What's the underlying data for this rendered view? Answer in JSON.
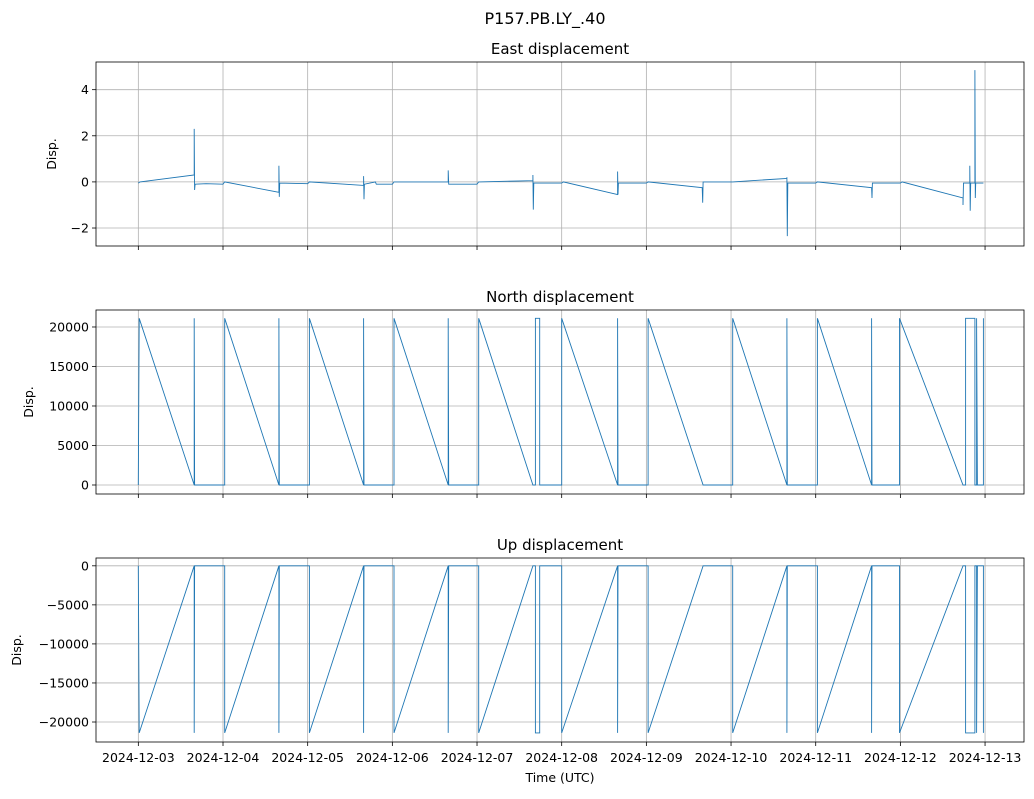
{
  "chart_data": {
    "type": "line",
    "suptitle": "P157.PB.LY_.40",
    "xlabel": "Time (UTC)",
    "x_unit": "days since 2024-12-03",
    "x_ticks": [
      "2024-12-03",
      "2024-12-04",
      "2024-12-05",
      "2024-12-06",
      "2024-12-07",
      "2024-12-08",
      "2024-12-09",
      "2024-12-10",
      "2024-12-11",
      "2024-12-12",
      "2024-12-13"
    ],
    "xlim": [
      -0.5,
      10.46
    ],
    "grid": true,
    "color": "#1f77b4",
    "panels": [
      {
        "title": "East displacement",
        "ylabel": "Disp.",
        "ylim": [
          -2.78,
          5.2
        ],
        "yticks": [
          -2,
          0,
          2,
          4
        ],
        "ytick_labels": [
          "−2",
          "0",
          "2",
          "4"
        ],
        "points": [
          [
            0,
            -0.05
          ],
          [
            0.02,
            0
          ],
          [
            0.66,
            0.3
          ],
          [
            0.66,
            2.3
          ],
          [
            0.665,
            -0.35
          ],
          [
            0.67,
            -0.1
          ],
          [
            0.8,
            -0.08
          ],
          [
            1.0,
            -0.1
          ],
          [
            1.02,
            0
          ],
          [
            1.66,
            -0.45
          ],
          [
            1.66,
            0.7
          ],
          [
            1.665,
            -0.65
          ],
          [
            1.67,
            -0.05
          ],
          [
            2.0,
            -0.08
          ],
          [
            2.02,
            0
          ],
          [
            2.66,
            -0.15
          ],
          [
            2.66,
            0.25
          ],
          [
            2.665,
            -0.75
          ],
          [
            2.67,
            -0.1
          ],
          [
            2.8,
            0.0
          ],
          [
            2.81,
            -0.1
          ],
          [
            3.0,
            -0.1
          ],
          [
            3.02,
            0
          ],
          [
            3.66,
            0.0
          ],
          [
            3.66,
            0.5
          ],
          [
            3.665,
            -0.1
          ],
          [
            4.0,
            -0.1
          ],
          [
            4.02,
            0
          ],
          [
            4.66,
            0.05
          ],
          [
            4.66,
            0.3
          ],
          [
            4.665,
            -1.2
          ],
          [
            4.67,
            -0.05
          ],
          [
            5.0,
            -0.05
          ],
          [
            5.02,
            0
          ],
          [
            5.66,
            -0.55
          ],
          [
            5.66,
            0.45
          ],
          [
            5.665,
            -0.55
          ],
          [
            5.67,
            -0.05
          ],
          [
            6.0,
            -0.05
          ],
          [
            6.02,
            0
          ],
          [
            6.66,
            -0.25
          ],
          [
            6.665,
            -0.9
          ],
          [
            6.67,
            0
          ],
          [
            7.0,
            0.0
          ],
          [
            7.02,
            0
          ],
          [
            7.66,
            0.15
          ],
          [
            7.66,
            0.2
          ],
          [
            7.665,
            -2.35
          ],
          [
            7.67,
            -0.05
          ],
          [
            8.0,
            -0.05
          ],
          [
            8.02,
            0
          ],
          [
            8.66,
            -0.25
          ],
          [
            8.665,
            -0.7
          ],
          [
            8.67,
            -0.05
          ],
          [
            9.0,
            -0.05
          ],
          [
            9.02,
            0
          ],
          [
            9.74,
            -0.7
          ],
          [
            9.74,
            -1.0
          ],
          [
            9.745,
            -0.05
          ],
          [
            9.82,
            -0.05
          ],
          [
            9.82,
            0.7
          ],
          [
            9.825,
            -1.25
          ],
          [
            9.83,
            -0.05
          ],
          [
            9.88,
            -0.05
          ],
          [
            9.88,
            4.85
          ],
          [
            9.885,
            -0.7
          ],
          [
            9.89,
            -0.05
          ],
          [
            9.98,
            -0.05
          ]
        ]
      },
      {
        "title": "North displacement",
        "ylabel": "Disp.",
        "ylim": [
          -1140,
          22150
        ],
        "yticks": [
          0,
          5000,
          10000,
          15000,
          20000
        ],
        "ytick_labels": [
          "0",
          "5000",
          "10000",
          "15000",
          "20000"
        ],
        "points": [
          [
            0,
            0
          ],
          [
            0.01,
            21100
          ],
          [
            0.66,
            0
          ],
          [
            0.66,
            21100
          ],
          [
            0.665,
            0
          ],
          [
            1.02,
            0
          ],
          [
            1.02,
            21100
          ],
          [
            1.66,
            0
          ],
          [
            1.66,
            21100
          ],
          [
            1.665,
            0
          ],
          [
            2.02,
            0
          ],
          [
            2.02,
            21100
          ],
          [
            2.66,
            0
          ],
          [
            2.66,
            21100
          ],
          [
            2.665,
            0
          ],
          [
            3.02,
            0
          ],
          [
            3.02,
            21100
          ],
          [
            3.66,
            0
          ],
          [
            3.66,
            21100
          ],
          [
            3.665,
            0
          ],
          [
            4.02,
            0
          ],
          [
            4.02,
            21100
          ],
          [
            4.66,
            0
          ],
          [
            4.69,
            0
          ],
          [
            4.69,
            21100
          ],
          [
            4.74,
            21100
          ],
          [
            4.74,
            0
          ],
          [
            5.0,
            0
          ],
          [
            5.0,
            21100
          ],
          [
            5.66,
            0
          ],
          [
            5.66,
            21100
          ],
          [
            5.665,
            0
          ],
          [
            6.02,
            0
          ],
          [
            6.02,
            21100
          ],
          [
            6.67,
            0
          ],
          [
            7.02,
            0
          ],
          [
            7.02,
            21100
          ],
          [
            7.66,
            0
          ],
          [
            7.66,
            21100
          ],
          [
            7.665,
            0
          ],
          [
            8.02,
            0
          ],
          [
            8.02,
            21100
          ],
          [
            8.66,
            0
          ],
          [
            8.66,
            21100
          ],
          [
            8.665,
            0
          ],
          [
            8.99,
            0
          ],
          [
            8.99,
            21100
          ],
          [
            9.74,
            0
          ],
          [
            9.77,
            0
          ],
          [
            9.77,
            21100
          ],
          [
            9.88,
            21100
          ],
          [
            9.88,
            0
          ],
          [
            9.9,
            0
          ],
          [
            9.9,
            21100
          ],
          [
            9.91,
            0
          ],
          [
            9.98,
            0
          ],
          [
            9.98,
            21100
          ]
        ]
      },
      {
        "title": "Up displacement",
        "ylabel": "Disp.",
        "ylim": [
          -22560,
          1000
        ],
        "yticks": [
          -20000,
          -15000,
          -10000,
          -5000,
          0
        ],
        "ytick_labels": [
          "−20000",
          "−15000",
          "−10000",
          "−5000",
          "0"
        ],
        "points": [
          [
            0,
            0
          ],
          [
            0.01,
            -21400
          ],
          [
            0.66,
            0
          ],
          [
            0.66,
            -21400
          ],
          [
            0.665,
            0
          ],
          [
            1.02,
            0
          ],
          [
            1.02,
            -21400
          ],
          [
            1.66,
            0
          ],
          [
            1.66,
            -21400
          ],
          [
            1.665,
            0
          ],
          [
            2.02,
            0
          ],
          [
            2.02,
            -21400
          ],
          [
            2.66,
            0
          ],
          [
            2.66,
            -21400
          ],
          [
            2.665,
            0
          ],
          [
            3.02,
            0
          ],
          [
            3.02,
            -21400
          ],
          [
            3.66,
            0
          ],
          [
            3.66,
            -21400
          ],
          [
            3.665,
            0
          ],
          [
            4.02,
            0
          ],
          [
            4.02,
            -21400
          ],
          [
            4.66,
            0
          ],
          [
            4.69,
            0
          ],
          [
            4.69,
            -21400
          ],
          [
            4.74,
            -21400
          ],
          [
            4.74,
            0
          ],
          [
            5.0,
            0
          ],
          [
            5.0,
            -21400
          ],
          [
            5.66,
            0
          ],
          [
            5.66,
            -21400
          ],
          [
            5.665,
            0
          ],
          [
            6.02,
            0
          ],
          [
            6.02,
            -21400
          ],
          [
            6.67,
            0
          ],
          [
            7.02,
            0
          ],
          [
            7.02,
            -21400
          ],
          [
            7.66,
            0
          ],
          [
            7.66,
            -21400
          ],
          [
            7.665,
            0
          ],
          [
            8.02,
            0
          ],
          [
            8.02,
            -21400
          ],
          [
            8.66,
            0
          ],
          [
            8.66,
            -21400
          ],
          [
            8.665,
            0
          ],
          [
            8.99,
            0
          ],
          [
            8.99,
            -21400
          ],
          [
            9.74,
            0
          ],
          [
            9.77,
            0
          ],
          [
            9.77,
            -21400
          ],
          [
            9.88,
            -21400
          ],
          [
            9.88,
            0
          ],
          [
            9.9,
            0
          ],
          [
            9.9,
            -21400
          ],
          [
            9.91,
            0
          ],
          [
            9.98,
            0
          ],
          [
            9.98,
            -21400
          ]
        ]
      }
    ]
  }
}
